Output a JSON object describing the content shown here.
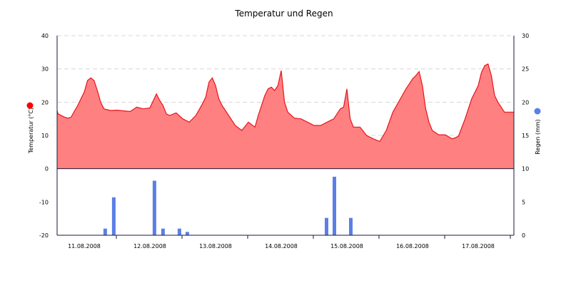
{
  "colors": {
    "temperature_fill": "#ff8080",
    "temperature_line": "#e8141c",
    "rain_bar": "#5b7fe8",
    "temperature_dot": "#ff0000",
    "rain_dot": "#5b7fe8",
    "grid": "#d8d8d8",
    "axis": "#1a1a3a"
  },
  "icons": {
    "temperature_marker": "red-dot-icon",
    "rain_marker": "blue-dot-icon"
  },
  "chart_data": {
    "type": "area",
    "title": "Temperatur und Regen",
    "xlabel": "",
    "x_tick_labels": [
      "11.08.2008",
      "12.08.2008",
      "13.08.2008",
      "14.08.2008",
      "15.08.2008",
      "16.08.2008",
      "17.08.2008"
    ],
    "y_left": {
      "label": "Temperatur (°C)",
      "ylim": [
        -20,
        40
      ],
      "ticks": [
        "-20",
        "-10",
        "0",
        "10",
        "20",
        "30",
        "40"
      ]
    },
    "y_right": {
      "label": "Regen (mm)",
      "ylim": [
        0,
        30
      ],
      "ticks": [
        "0",
        "5",
        "10",
        "15",
        "20",
        "25",
        "30"
      ]
    },
    "grid": true,
    "series": [
      {
        "type": "area",
        "axis": "left",
        "x_days": [
          0.0,
          0.1,
          0.2,
          0.25,
          0.3,
          0.4,
          0.5,
          0.55,
          0.6,
          0.65,
          0.7,
          0.75,
          0.8,
          0.9,
          1.0,
          1.1,
          1.2,
          1.3,
          1.4,
          1.5,
          1.6,
          1.65,
          1.7,
          1.75,
          1.8,
          1.9,
          2.0,
          2.1,
          2.2,
          2.3,
          2.35,
          2.4,
          2.45,
          2.5,
          2.55,
          2.6,
          2.7,
          2.8,
          2.9,
          3.0,
          3.1,
          3.15,
          3.2,
          3.25,
          3.3,
          3.35,
          3.4,
          3.45,
          3.5,
          3.55,
          3.6,
          3.7,
          3.8,
          3.9,
          4.0,
          4.1,
          4.2,
          4.3,
          4.35,
          4.4,
          4.45,
          4.5,
          4.55,
          4.6,
          4.7,
          4.8,
          4.9,
          5.0,
          5.1,
          5.2,
          5.3,
          5.4,
          5.5,
          5.55,
          5.6,
          5.65,
          5.7,
          5.75,
          5.8,
          5.9,
          6.0,
          6.1,
          6.15,
          6.2,
          6.3,
          6.4,
          6.5,
          6.55,
          6.6,
          6.65,
          6.7,
          6.75,
          6.8,
          6.9,
          7.0
        ],
        "values": [
          17.5,
          16.5,
          15.5,
          15.2,
          15.5,
          19.0,
          23.0,
          26.5,
          27.3,
          26.5,
          23.5,
          20.0,
          18.0,
          17.5,
          17.6,
          17.4,
          17.2,
          18.5,
          18.0,
          18.3,
          22.5,
          20.5,
          19.0,
          16.5,
          16.0,
          16.8,
          15.0,
          14.0,
          16.0,
          19.5,
          21.5,
          26.0,
          27.3,
          25.0,
          21.0,
          19.0,
          16.0,
          13.0,
          11.5,
          14.0,
          12.5,
          16.0,
          19.0,
          22.0,
          24.0,
          24.5,
          23.5,
          25.0,
          29.5,
          20.0,
          17.0,
          15.2,
          15.0,
          14.0,
          13.0,
          13.0,
          14.0,
          15.0,
          16.5,
          18.0,
          18.5,
          24.0,
          15.0,
          12.5,
          12.5,
          10.0,
          9.0,
          8.2,
          11.5,
          17.0,
          20.5,
          24.0,
          27.0,
          28.0,
          29.2,
          25.0,
          18.0,
          14.0,
          11.5,
          10.2,
          10.2,
          9.0,
          9.3,
          9.8,
          15.0,
          21.0,
          25.0,
          29.0,
          31.0,
          31.5,
          28.0,
          22.0,
          20.0,
          17.0,
          17.0
        ]
      },
      {
        "type": "bar",
        "axis": "right",
        "x_days": [
          0.82,
          0.95,
          1.57,
          1.7,
          1.95,
          2.07,
          4.19,
          4.31,
          4.56
        ],
        "values": [
          1.0,
          5.7,
          8.2,
          1.0,
          1.0,
          0.5,
          2.6,
          8.8,
          2.6
        ]
      }
    ]
  }
}
